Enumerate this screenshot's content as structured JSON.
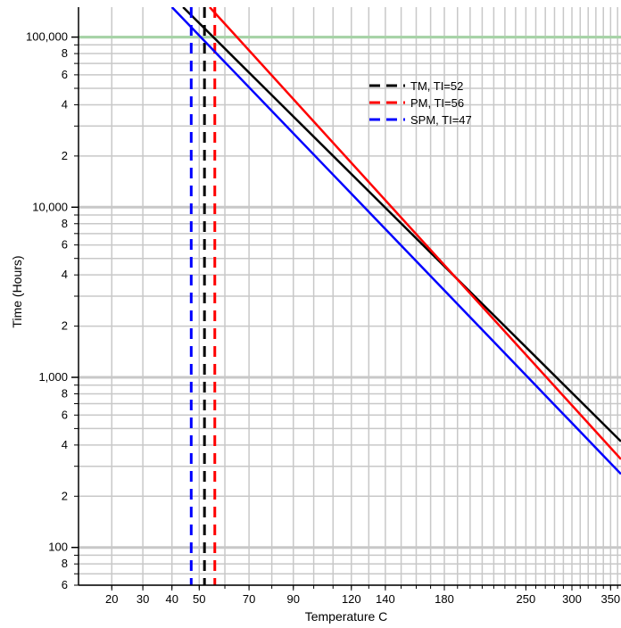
{
  "chart_data": {
    "type": "line",
    "title": "",
    "xlabel": "Temperature C",
    "ylabel": "Time (Hours)",
    "x_scale": "reciprocal-kelvin",
    "y_scale": "log",
    "xlim": [
      10,
      365
    ],
    "ylim": [
      60,
      150000
    ],
    "x_tick_labels": [
      "20",
      "30",
      "40",
      "50",
      "70",
      "90",
      "120",
      "140",
      "180",
      "250",
      "300",
      "350"
    ],
    "x_ticks": [
      20,
      30,
      40,
      50,
      70,
      90,
      120,
      140,
      180,
      250,
      300,
      350
    ],
    "y_major_ticks": [
      {
        "value": 100,
        "label": "100"
      },
      {
        "value": 1000,
        "label": "1,000"
      },
      {
        "value": 10000,
        "label": "10,000"
      },
      {
        "value": 100000,
        "label": "100,000"
      }
    ],
    "y_minor_labels": [
      "2",
      "4",
      "6",
      "8"
    ],
    "legend_position": "upper-right",
    "series": [
      {
        "name": "TM, TI=52",
        "color": "#000000",
        "ti": 52,
        "line": [
          {
            "x": 44,
            "y": 150000
          },
          {
            "x": 365,
            "y": 420
          }
        ]
      },
      {
        "name": "PM, TI=56",
        "color": "#ff0000",
        "ti": 56,
        "line": [
          {
            "x": 54,
            "y": 150000
          },
          {
            "x": 365,
            "y": 330
          }
        ]
      },
      {
        "name": "SPM, TI=47",
        "color": "#0000ff",
        "ti": 47,
        "line": [
          {
            "x": 40,
            "y": 150000
          },
          {
            "x": 365,
            "y": 270
          }
        ]
      }
    ],
    "reference_line": {
      "y": 100000,
      "color": "#a6d3a6"
    },
    "grid": true
  }
}
